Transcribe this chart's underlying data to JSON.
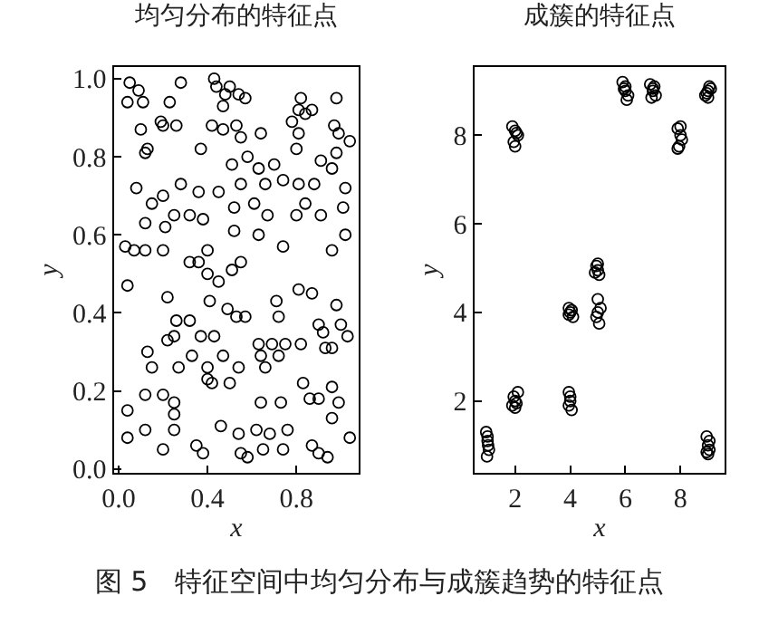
{
  "chart_data": [
    {
      "type": "scatter",
      "title": "均匀分布的特征点",
      "xlabel": "x",
      "ylabel": "y",
      "marker": "circle",
      "grid": false,
      "annotations": [
        "图 5　特征空间中均匀分布与成簇趋势的特征点"
      ],
      "series": [
        {
          "color": "#000000",
          "x": [
            0.05,
            0.09,
            0.04,
            0.11,
            0.28,
            0.23,
            0.43,
            0.44,
            0.5,
            0.48,
            0.54,
            0.57,
            0.47,
            0.82,
            0.81,
            0.87,
            0.84,
            0.98,
            0.78,
            0.19,
            0.2,
            0.26,
            0.1,
            0.42,
            0.47,
            0.53,
            0.55,
            0.64,
            0.97,
            0.99,
            1.04,
            0.81,
            0.37,
            0.58,
            0.13,
            0.12,
            0.8,
            0.51,
            0.63,
            0.7,
            0.91,
            0.96,
            0.98,
            0.08,
            0.2,
            0.28,
            0.36,
            0.45,
            0.55,
            0.66,
            0.74,
            0.81,
            0.88,
            1.02,
            0.15,
            0.12,
            0.25,
            0.32,
            0.38,
            0.52,
            0.61,
            0.67,
            0.8,
            0.84,
            0.91,
            1.01,
            0.21,
            0.52,
            0.63,
            0.74,
            1.02,
            0.03,
            0.07,
            0.12,
            0.2,
            0.4,
            0.36,
            0.55,
            0.32,
            0.96,
            0.04,
            0.4,
            0.51,
            0.45,
            0.81,
            0.87,
            0.41,
            0.49,
            0.71,
            0.72,
            0.57,
            0.98,
            0.22,
            0.26,
            0.32,
            0.53,
            0.9,
            1.0,
            0.92,
            1.03,
            0.37,
            0.25,
            0.43,
            0.22,
            0.63,
            0.75,
            0.82,
            0.93,
            0.69,
            0.33,
            0.13,
            0.47,
            0.64,
            0.72,
            0.96,
            0.15,
            0.27,
            0.4,
            0.54,
            0.66,
            0.4,
            0.5,
            0.12,
            0.2,
            0.42,
            0.83,
            0.96,
            0.64,
            0.73,
            0.86,
            0.9,
            0.99,
            0.25,
            0.25,
            0.04,
            0.12,
            0.25,
            0.46,
            0.54,
            0.62,
            0.68,
            0.76,
            0.96,
            1.04,
            0.04,
            0.2,
            0.35,
            0.38,
            0.58,
            0.65,
            0.74,
            0.87,
            0.9,
            0.94,
            0.55
          ],
          "values": [
            0.99,
            0.97,
            0.94,
            0.94,
            0.99,
            0.94,
            1.0,
            0.98,
            0.98,
            0.96,
            0.96,
            0.95,
            0.93,
            0.95,
            0.92,
            0.92,
            0.91,
            0.95,
            0.89,
            0.89,
            0.88,
            0.88,
            0.87,
            0.88,
            0.87,
            0.88,
            0.85,
            0.86,
            0.88,
            0.86,
            0.84,
            0.86,
            0.82,
            0.8,
            0.82,
            0.81,
            0.82,
            0.78,
            0.77,
            0.78,
            0.79,
            0.77,
            0.81,
            0.72,
            0.7,
            0.73,
            0.71,
            0.71,
            0.73,
            0.73,
            0.74,
            0.73,
            0.73,
            0.72,
            0.68,
            0.63,
            0.65,
            0.65,
            0.64,
            0.67,
            0.68,
            0.65,
            0.65,
            0.68,
            0.65,
            0.67,
            0.62,
            0.61,
            0.6,
            0.57,
            0.6,
            0.57,
            0.56,
            0.56,
            0.56,
            0.56,
            0.53,
            0.53,
            0.53,
            0.56,
            0.47,
            0.5,
            0.51,
            0.48,
            0.46,
            0.45,
            0.43,
            0.41,
            0.43,
            0.39,
            0.39,
            0.42,
            0.44,
            0.38,
            0.38,
            0.39,
            0.37,
            0.37,
            0.35,
            0.34,
            0.34,
            0.34,
            0.34,
            0.33,
            0.32,
            0.32,
            0.32,
            0.31,
            0.32,
            0.29,
            0.3,
            0.29,
            0.29,
            0.29,
            0.31,
            0.26,
            0.26,
            0.26,
            0.26,
            0.26,
            0.23,
            0.22,
            0.19,
            0.19,
            0.22,
            0.22,
            0.21,
            0.17,
            0.17,
            0.18,
            0.18,
            0.17,
            0.17,
            0.14,
            0.15,
            0.1,
            0.1,
            0.11,
            0.09,
            0.1,
            0.09,
            0.1,
            0.13,
            0.08,
            0.08,
            0.05,
            0.06,
            0.04,
            0.03,
            0.05,
            0.05,
            0.06,
            0.04,
            0.03,
            0.04
          ]
        }
      ],
      "xlim": [
        -0.02,
        1.08
      ],
      "ylim": [
        -0.01,
        1.03
      ],
      "xticks": [
        {
          "value": 0,
          "label": "0.0"
        },
        0.4,
        0.8
      ],
      "yticks": [
        {
          "value": 0,
          "label": "0.0"
        },
        0.2,
        0.4,
        0.6,
        0.8,
        {
          "value": 1,
          "label": "1.0"
        }
      ]
    },
    {
      "type": "scatter",
      "title": "成簇的特征点",
      "xlabel": "x",
      "ylabel": "y",
      "marker": "circle",
      "grid": false,
      "series": [
        {
          "color": "#000000",
          "x": [
            0.95,
            1.0,
            1.05,
            0.98,
            1.02,
            1.0,
            1.9,
            2.0,
            2.1,
            1.95,
            2.05,
            2.0,
            1.9,
            2.0,
            2.1,
            1.95,
            2.05,
            2.0,
            3.95,
            4.0,
            4.1,
            3.95,
            4.05,
            3.95,
            4.0,
            4.05,
            3.95,
            4.0,
            4.95,
            5.0,
            5.05,
            5.0,
            4.9,
            5.0,
            5.1,
            4.95,
            5.05,
            5.0,
            5.9,
            6.0,
            6.1,
            5.95,
            6.05,
            6.0,
            6.9,
            7.0,
            7.1,
            6.95,
            7.05,
            7.0,
            7.9,
            8.0,
            8.05,
            7.95,
            8.0,
            7.9,
            8.9,
            9.0,
            9.1,
            8.95,
            9.05,
            9.0,
            8.95,
            9.0,
            9.05,
            8.95,
            9.05,
            9.0
          ],
          "values": [
            1.3,
            1.1,
            0.9,
            0.75,
            1.0,
            1.2,
            8.2,
            8.1,
            8.0,
            7.85,
            8.05,
            7.75,
            1.9,
            2.0,
            2.2,
            2.1,
            1.95,
            1.85,
            4.1,
            4.0,
            3.9,
            3.95,
            4.05,
            2.2,
            2.0,
            1.8,
            1.9,
            2.1,
            5.05,
            4.95,
            4.85,
            5.1,
            4.9,
            4.3,
            4.1,
            3.9,
            3.75,
            4.0,
            9.2,
            9.0,
            8.9,
            9.05,
            8.8,
            9.1,
            9.15,
            9.0,
            8.9,
            8.85,
            9.1,
            9.05,
            8.15,
            8.0,
            7.9,
            7.75,
            8.2,
            7.7,
            8.9,
            9.0,
            9.05,
            8.95,
            9.1,
            8.85,
            1.2,
            1.0,
            0.9,
            0.85,
            1.1,
            0.8
          ]
        }
      ],
      "xlim": [
        0.53,
        9.6
      ],
      "ylim": [
        0.38,
        9.54
      ],
      "xticks": [
        2,
        4,
        6,
        8
      ],
      "yticks": [
        2,
        4,
        6,
        8
      ]
    }
  ]
}
